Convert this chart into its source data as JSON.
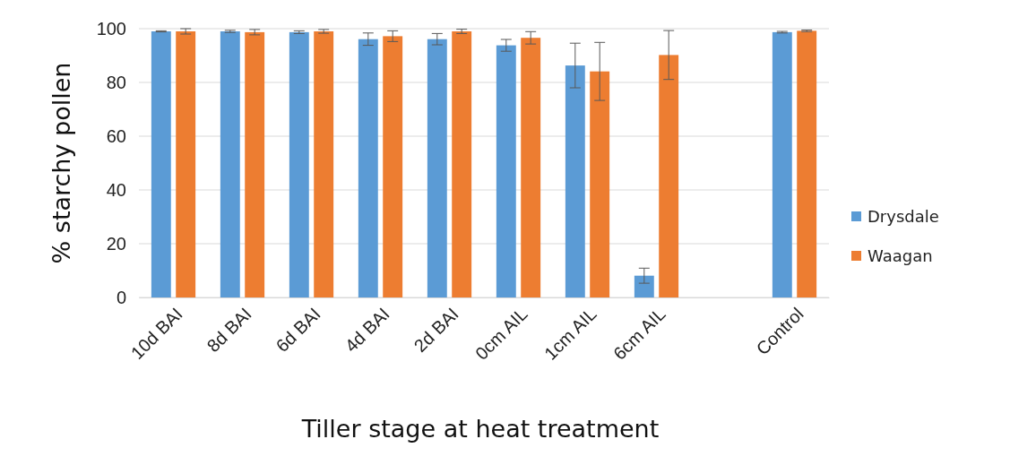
{
  "chart_data": {
    "type": "bar",
    "xlabel": "Tiller stage at heat treatment",
    "ylabel": "% starchy pollen",
    "categories": [
      "10d BAI",
      "8d BAI",
      "6d BAI",
      "4d BAI",
      "2d BAI",
      "0cm AIL",
      "1cm AIL",
      "6cm AIL",
      null,
      "Control"
    ],
    "series": [
      {
        "name": "Drysdale",
        "color": "#5b9bd5",
        "values": [
          99,
          99,
          98.7,
          96.1,
          96.1,
          93.8,
          86.3,
          8.1,
          null,
          98.7
        ],
        "errors": [
          0.2,
          0.4,
          0.5,
          2.3,
          2.1,
          2.2,
          8.3,
          2.8,
          null,
          0.3
        ]
      },
      {
        "name": "Waagan",
        "color": "#ed7d31",
        "values": [
          99,
          98.7,
          99,
          97.2,
          99,
          96.6,
          84.1,
          90.2,
          null,
          99.2
        ],
        "errors": [
          1,
          1,
          0.7,
          2,
          0.8,
          2.3,
          10.8,
          9.1,
          null,
          0.3
        ]
      }
    ],
    "ylim": [
      0,
      100
    ],
    "yticks": [
      0,
      20,
      40,
      60,
      80,
      100
    ],
    "grid": "y",
    "legend": "right"
  }
}
